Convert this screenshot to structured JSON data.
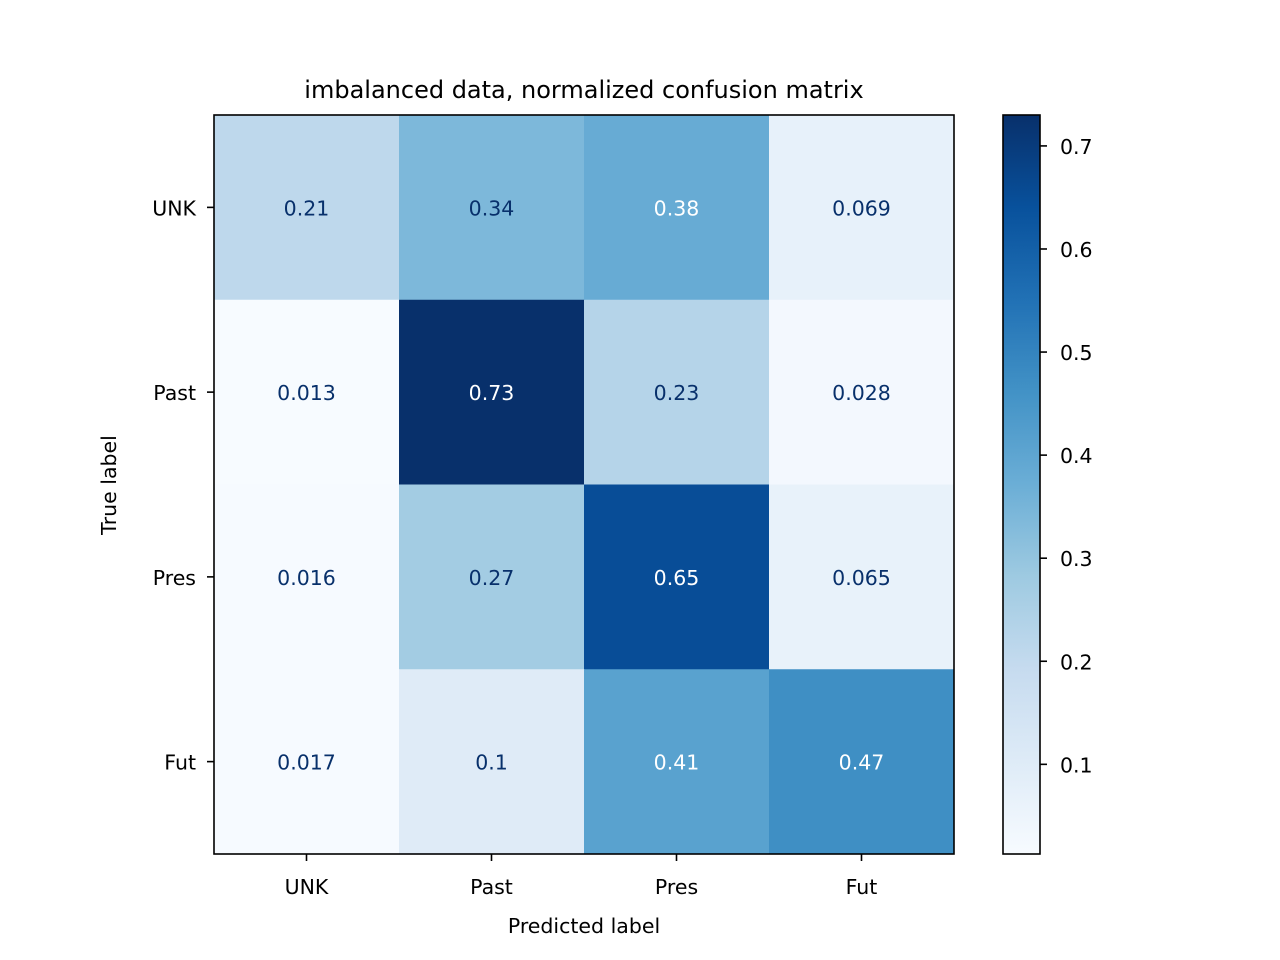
{
  "chart_data": {
    "type": "heatmap",
    "title": "imbalanced data, normalized confusion matrix",
    "xlabel": "Predicted label",
    "ylabel": "True label",
    "x_categories": [
      "UNK",
      "Past",
      "Pres",
      "Fut"
    ],
    "y_categories": [
      "UNK",
      "Past",
      "Pres",
      "Fut"
    ],
    "values": [
      [
        0.21,
        0.34,
        0.38,
        0.069
      ],
      [
        0.013,
        0.73,
        0.23,
        0.028
      ],
      [
        0.016,
        0.27,
        0.65,
        0.065
      ],
      [
        0.017,
        0.1,
        0.41,
        0.47
      ]
    ],
    "colormap": "Blues",
    "colorbar": {
      "range": [
        0.013,
        0.73
      ],
      "ticks": [
        0.1,
        0.2,
        0.3,
        0.4,
        0.5,
        0.6,
        0.7
      ]
    },
    "text_colors": {
      "dark": "#08306b",
      "light": "#ffffff"
    }
  }
}
